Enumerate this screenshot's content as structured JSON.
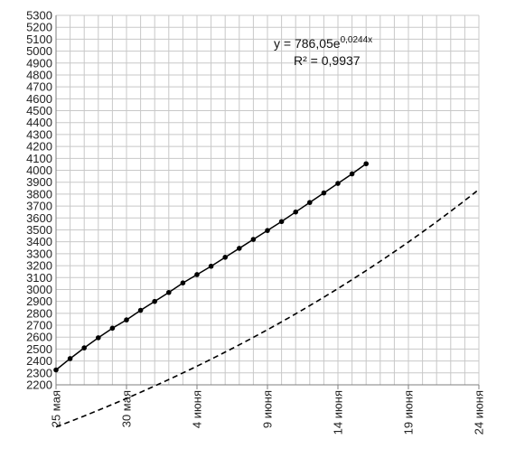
{
  "chart_data": {
    "type": "line",
    "x_axis": {
      "type": "date",
      "min": "2020-05-25",
      "max": "2020-06-24",
      "tick_labels": [
        "25 мая",
        "30 мая",
        "4 июня",
        "9 июня",
        "14 июня",
        "19 июня",
        "24 июня"
      ],
      "tick_dates": [
        "2020-05-25",
        "2020-05-30",
        "2020-06-04",
        "2020-06-09",
        "2020-06-14",
        "2020-06-19",
        "2020-06-24"
      ],
      "minor_grid_step_days": 1
    },
    "y_axis": {
      "min": 2200,
      "max": 5300,
      "step": 100
    },
    "grid": true,
    "series": [
      {
        "style": "solid-with-markers",
        "color": "#000000",
        "points": [
          {
            "x": "2020-05-25",
            "y": 2325
          },
          {
            "x": "2020-05-26",
            "y": 2420
          },
          {
            "x": "2020-05-27",
            "y": 2510
          },
          {
            "x": "2020-05-28",
            "y": 2595
          },
          {
            "x": "2020-05-29",
            "y": 2675
          },
          {
            "x": "2020-05-30",
            "y": 2745
          },
          {
            "x": "2020-05-31",
            "y": 2825
          },
          {
            "x": "2020-06-01",
            "y": 2900
          },
          {
            "x": "2020-06-02",
            "y": 2975
          },
          {
            "x": "2020-06-03",
            "y": 3055
          },
          {
            "x": "2020-06-04",
            "y": 3125
          },
          {
            "x": "2020-06-05",
            "y": 3195
          },
          {
            "x": "2020-06-06",
            "y": 3270
          },
          {
            "x": "2020-06-07",
            "y": 3345
          },
          {
            "x": "2020-06-08",
            "y": 3420
          },
          {
            "x": "2020-06-09",
            "y": 3495
          },
          {
            "x": "2020-06-10",
            "y": 3570
          },
          {
            "x": "2020-06-11",
            "y": 3650
          },
          {
            "x": "2020-06-12",
            "y": 3730
          },
          {
            "x": "2020-06-13",
            "y": 3810
          },
          {
            "x": "2020-06-14",
            "y": 3890
          },
          {
            "x": "2020-06-15",
            "y": 3970
          },
          {
            "x": "2020-06-16",
            "y": 4055
          }
        ]
      },
      {
        "style": "dashed-trendline",
        "color": "#000000",
        "trend": "exponential",
        "a": 786.05,
        "b": 0.0244,
        "x_start": "2020-05-25",
        "x_end": "2020-06-24"
      }
    ],
    "annotations": [
      {
        "text": "y = 786,05e",
        "superscript": "0,0244x"
      },
      {
        "text": "R² = 0,9937"
      }
    ]
  }
}
